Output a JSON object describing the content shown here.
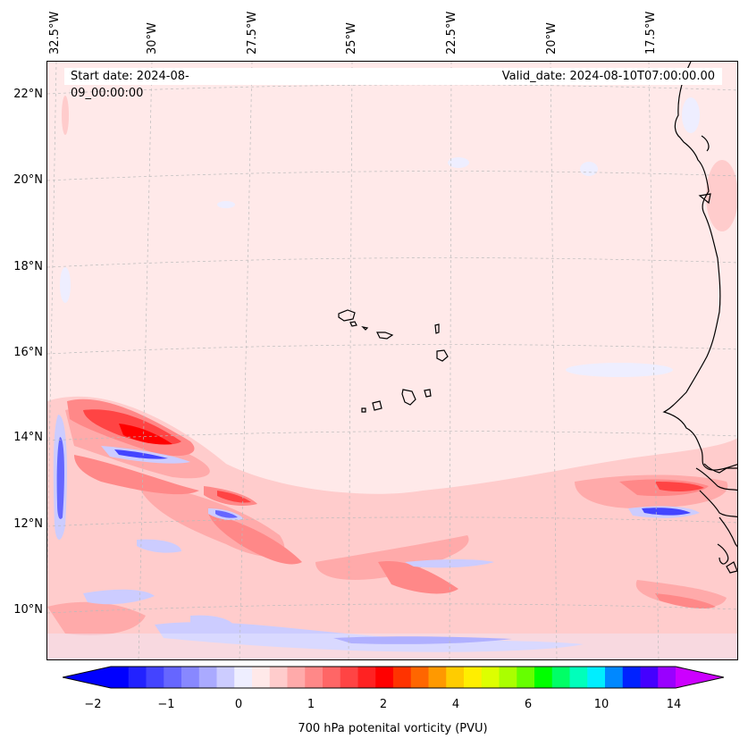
{
  "header": {
    "start_date": "Start date: 2024-08-09_00:00:00",
    "valid_date": "Valid_date: 2024-08-10T07:00:00.00"
  },
  "longitude_labels": [
    "32.5°W",
    "30°W",
    "27.5°W",
    "25°W",
    "22.5°W",
    "20°W",
    "17.5°W"
  ],
  "latitude_labels": [
    "22°N",
    "20°N",
    "18°N",
    "16°N",
    "14°N",
    "12°N",
    "10°N"
  ],
  "colorbar": {
    "label": "700 hPa potenital vorticity (PVU)",
    "tick_labels": [
      "−2",
      "−1",
      "0",
      "1",
      "2",
      "4",
      "6",
      "10",
      "14"
    ],
    "colors": [
      "#0000ff",
      "#2222ff",
      "#4444ff",
      "#6666ff",
      "#8888ff",
      "#aaaaff",
      "#ccccff",
      "#eeeeff",
      "#ffe9e9",
      "#ffcccc",
      "#ffaaaa",
      "#ff8888",
      "#ff6666",
      "#ff4444",
      "#ff2222",
      "#ff0000",
      "#ff3300",
      "#ff6600",
      "#ff9900",
      "#ffcc00",
      "#ffee00",
      "#ddff00",
      "#aaff00",
      "#66ff00",
      "#00ff00",
      "#00ff66",
      "#00ffbb",
      "#00eeff",
      "#0088ff",
      "#0022ff",
      "#4400ff",
      "#9900ff"
    ],
    "under_color": "#0000ff",
    "over_color": "#cc00ff"
  },
  "chart_data": {
    "type": "heatmap",
    "title": "",
    "variable": "700 hPa potenital vorticity (PVU)",
    "lon_range": [
      "33°W",
      "15.5°W"
    ],
    "lat_range": [
      "8.9°N",
      "22.8°N"
    ],
    "colorbar_ticks": [
      -2,
      -1,
      0,
      1,
      2,
      4,
      6,
      10,
      14
    ],
    "features": [
      {
        "name": "positive PV band",
        "lon": "31.5°W to 29°W",
        "lat": "13.8°N to 14.5°N",
        "value_pvu": 2
      },
      {
        "name": "negative PV streak",
        "lon": "30.5°W to 28.5°W",
        "lat": "13.6°N to 13.9°N",
        "value_pvu": -1
      },
      {
        "name": "negative PV streak (west edge)",
        "lon": "32.5°W",
        "lat": "11.5°N to 14°N",
        "value_pvu": -1
      },
      {
        "name": "negative PV band south",
        "lon": "28°W to 21°W",
        "lat": "9.2°N",
        "value_pvu": -1
      },
      {
        "name": "positive PV near coast",
        "lon": "17.5°W to 16°W",
        "lat": "12.8°N",
        "value_pvu": 2
      }
    ]
  }
}
